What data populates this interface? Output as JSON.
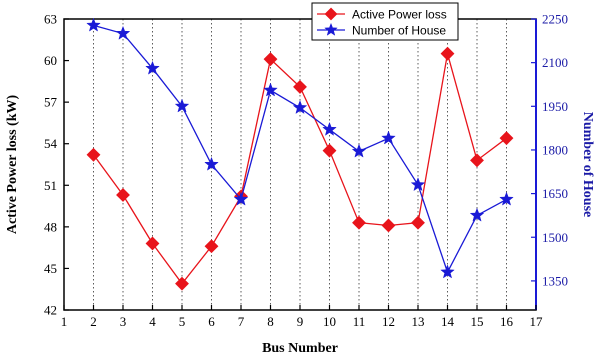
{
  "chart_data": {
    "type": "line",
    "title": "",
    "xlabel": "Bus Number",
    "ylabel": "Active Power loss (kW)",
    "y2label": "Number of House",
    "xlim": [
      1,
      17
    ],
    "ylim": [
      42,
      63
    ],
    "y2lim": [
      1250,
      2250
    ],
    "xticks": [
      1,
      2,
      3,
      4,
      5,
      6,
      7,
      8,
      9,
      10,
      11,
      12,
      13,
      14,
      15,
      16,
      17
    ],
    "yticks": [
      42,
      45,
      48,
      51,
      54,
      57,
      60,
      63
    ],
    "y2ticks": [
      1350,
      1500,
      1650,
      1800,
      1950,
      2100,
      2250
    ],
    "grid": "vertical dotted",
    "legend_position": "top-right",
    "x": [
      2,
      3,
      4,
      5,
      6,
      7,
      8,
      9,
      10,
      11,
      12,
      13,
      14,
      15,
      16
    ],
    "series": [
      {
        "name": "Active Power loss",
        "axis": "left",
        "marker": "diamond",
        "color": "#e8141b",
        "values": [
          53.2,
          50.3,
          46.8,
          43.9,
          46.6,
          50.2,
          60.1,
          58.1,
          53.5,
          48.3,
          48.1,
          48.3,
          60.5,
          52.8,
          54.4
        ]
      },
      {
        "name": "Number of House",
        "axis": "right",
        "marker": "star",
        "color": "#1a1ad6",
        "values": [
          2228,
          2200,
          2080,
          1950,
          1750,
          1630,
          2005,
          1945,
          1870,
          1795,
          1840,
          1680,
          1380,
          1575,
          1630
        ]
      }
    ]
  }
}
